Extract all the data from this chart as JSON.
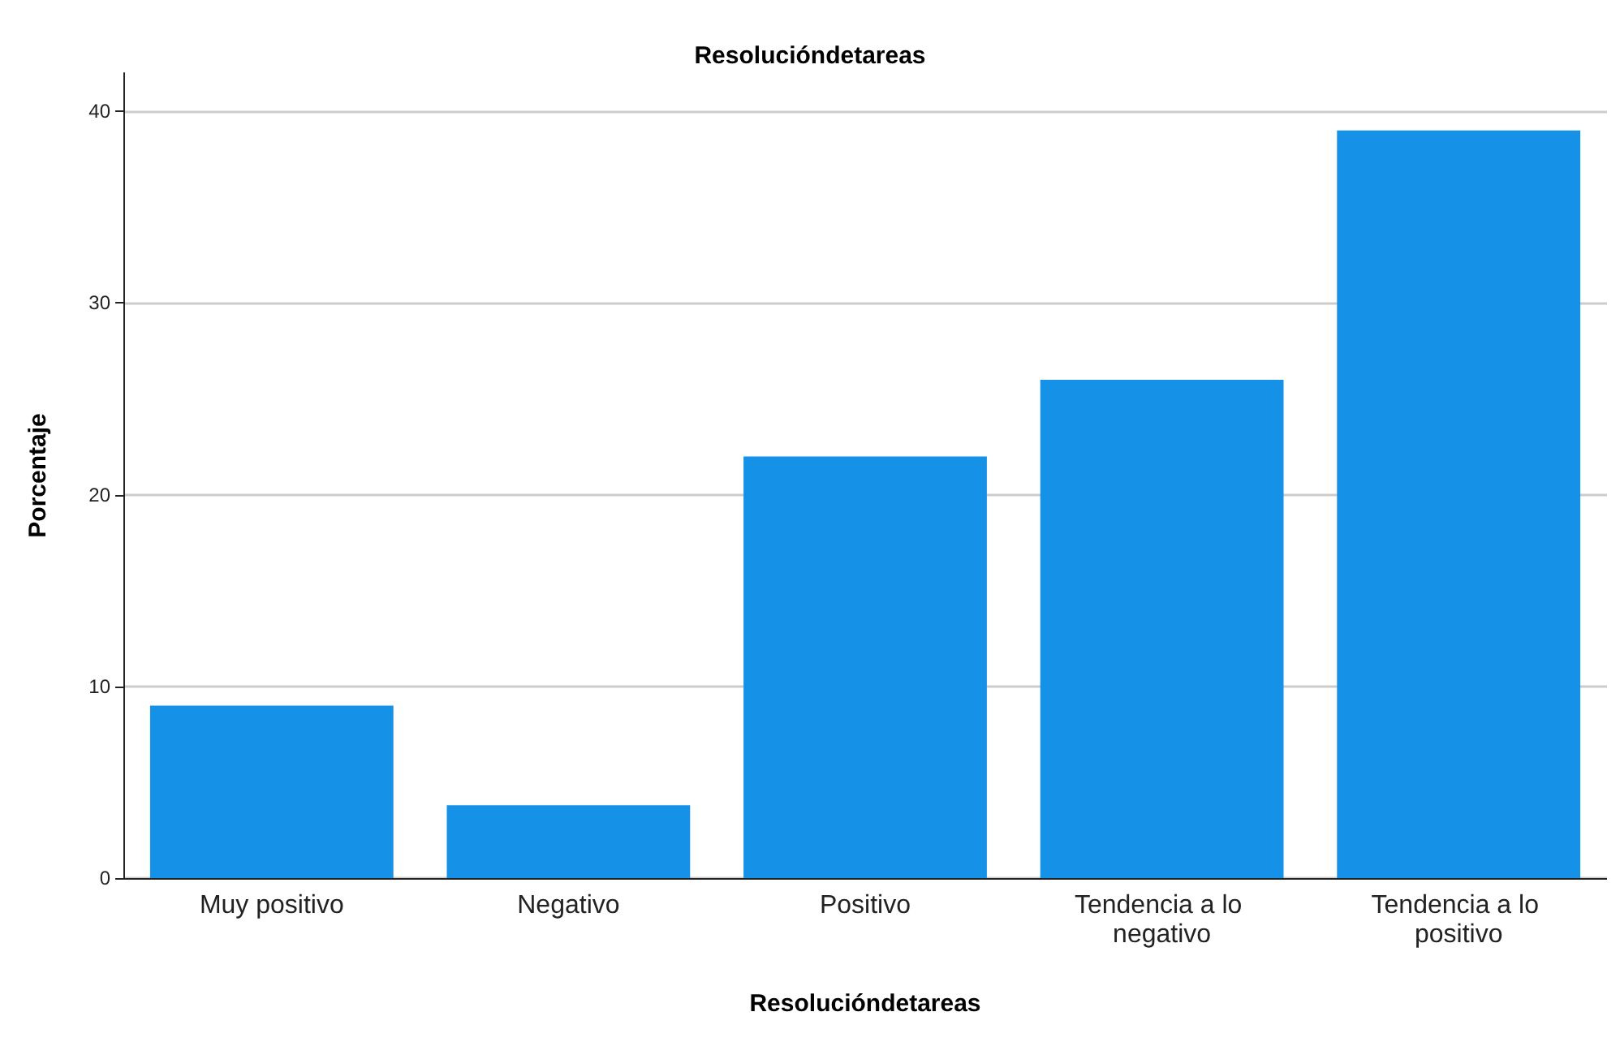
{
  "chart_data": {
    "type": "bar",
    "title": "Resolucióndetareas",
    "xlabel": "Resolucióndetareas",
    "ylabel": "Porcentaje",
    "categories": [
      "Muy positivo",
      "Negativo",
      "Positivo",
      "Tendencia a lo negativo",
      "Tendencia a lo positivo"
    ],
    "values": [
      9,
      3.8,
      22,
      26,
      39
    ],
    "color": "#1591e8",
    "ylim": [
      0,
      42
    ],
    "yticks": [
      0,
      10,
      20,
      30,
      40
    ],
    "grid": "y"
  }
}
